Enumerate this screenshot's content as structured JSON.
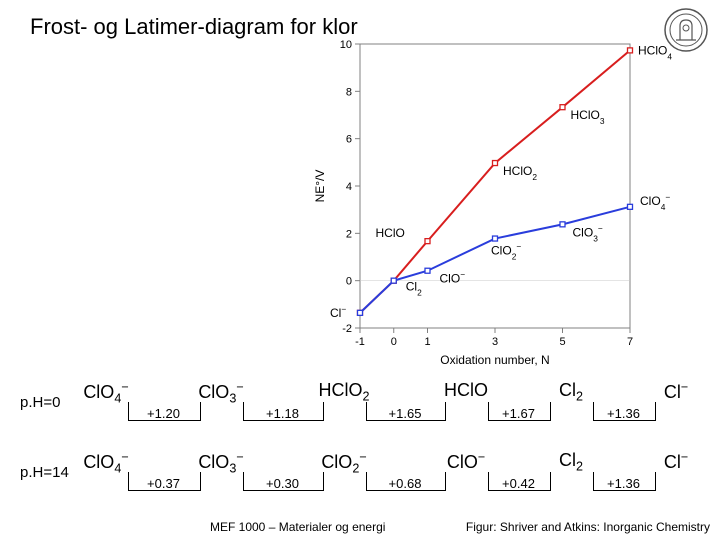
{
  "title": "Frost- og Latimer-diagram for klor",
  "footer_left": "MEF 1000 – Materialer og energi",
  "footer_right": "Figur: Shriver and Atkins: Inorganic Chemistry",
  "chart": {
    "type": "line",
    "x_label": "Oxidation number, N",
    "y_label": "NE°/V",
    "xlim": [
      -1,
      7
    ],
    "ylim": [
      -2,
      10
    ],
    "xticks": [
      -1,
      0,
      1,
      3,
      5,
      7
    ],
    "yticks": [
      -2,
      0,
      2,
      4,
      6,
      8,
      10
    ],
    "frame_color": "#808080",
    "grid_color": "#c8c8c8",
    "tick_fontsize": 11,
    "label_fontsize": 12,
    "series": [
      {
        "name": "pH0",
        "color": "#d81e1e",
        "marker": "square",
        "marker_fill": "#ffffff",
        "marker_size": 5,
        "linewidth": 2,
        "points": [
          {
            "x": -1,
            "y": -1.36
          },
          {
            "x": 0,
            "y": 0
          },
          {
            "x": 1,
            "y": 1.67
          },
          {
            "x": 3,
            "y": 4.97
          },
          {
            "x": 5,
            "y": 7.33
          },
          {
            "x": 7,
            "y": 9.73
          }
        ],
        "labels": [
          {
            "x": -1,
            "y": -1.36,
            "text": "Cl-",
            "dx": -30,
            "dy": 4
          },
          {
            "x": 0,
            "y": 0,
            "text": "Cl2",
            "dx": 12,
            "dy": 10
          },
          {
            "x": 1,
            "y": 1.67,
            "text": "HCl.O",
            "dx": -52,
            "dy": -4
          },
          {
            "x": 3,
            "y": 4.97,
            "text": "HCl.O2",
            "dx": 8,
            "dy": 12
          },
          {
            "x": 5,
            "y": 7.33,
            "text": "HCl.O3",
            "dx": 8,
            "dy": 12
          },
          {
            "x": 7,
            "y": 9.73,
            "text": "HCl.O4",
            "dx": 8,
            "dy": 4
          }
        ]
      },
      {
        "name": "pH14",
        "color": "#2a3ddc",
        "marker": "square",
        "marker_fill": "#ffffff",
        "marker_size": 5,
        "linewidth": 2,
        "points": [
          {
            "x": -1,
            "y": -1.36
          },
          {
            "x": 0,
            "y": 0
          },
          {
            "x": 1,
            "y": 0.42
          },
          {
            "x": 3,
            "y": 1.78
          },
          {
            "x": 5,
            "y": 2.38
          },
          {
            "x": 7,
            "y": 3.12
          }
        ],
        "labels": [
          {
            "x": 1,
            "y": 0.42,
            "text": "Cl.O-",
            "dx": 12,
            "dy": 12
          },
          {
            "x": 3,
            "y": 1.78,
            "text": "Cl.O2-",
            "dx": -4,
            "dy": 16
          },
          {
            "x": 5,
            "y": 2.38,
            "text": "Cl.O3-",
            "dx": 10,
            "dy": 12
          },
          {
            "x": 7,
            "y": 3.12,
            "text": "Cl.O4-",
            "dx": 10,
            "dy": -2
          }
        ]
      }
    ]
  },
  "latimer": [
    {
      "ph_label": "p.H=0",
      "species": [
        "Cl.O4-",
        "Cl.O3-",
        "HCl.O2",
        "HCl.O",
        "Cl2",
        "Cl-"
      ],
      "potentials": [
        "+1.20",
        "+1.18",
        "+1.65",
        "+1.67",
        "+1.36"
      ]
    },
    {
      "ph_label": "p.H=14",
      "species": [
        "Cl.O4-",
        "Cl.O3-",
        "Cl.O2-",
        "Cl.O-",
        "Cl2",
        "Cl-"
      ],
      "potentials": [
        "+0.37",
        "+0.30",
        "+0.68",
        "+0.42",
        "+1.36"
      ]
    }
  ],
  "latimer_layout": {
    "positions": [
      30,
      145,
      268,
      390,
      495,
      600
    ],
    "segment_width": 640
  }
}
